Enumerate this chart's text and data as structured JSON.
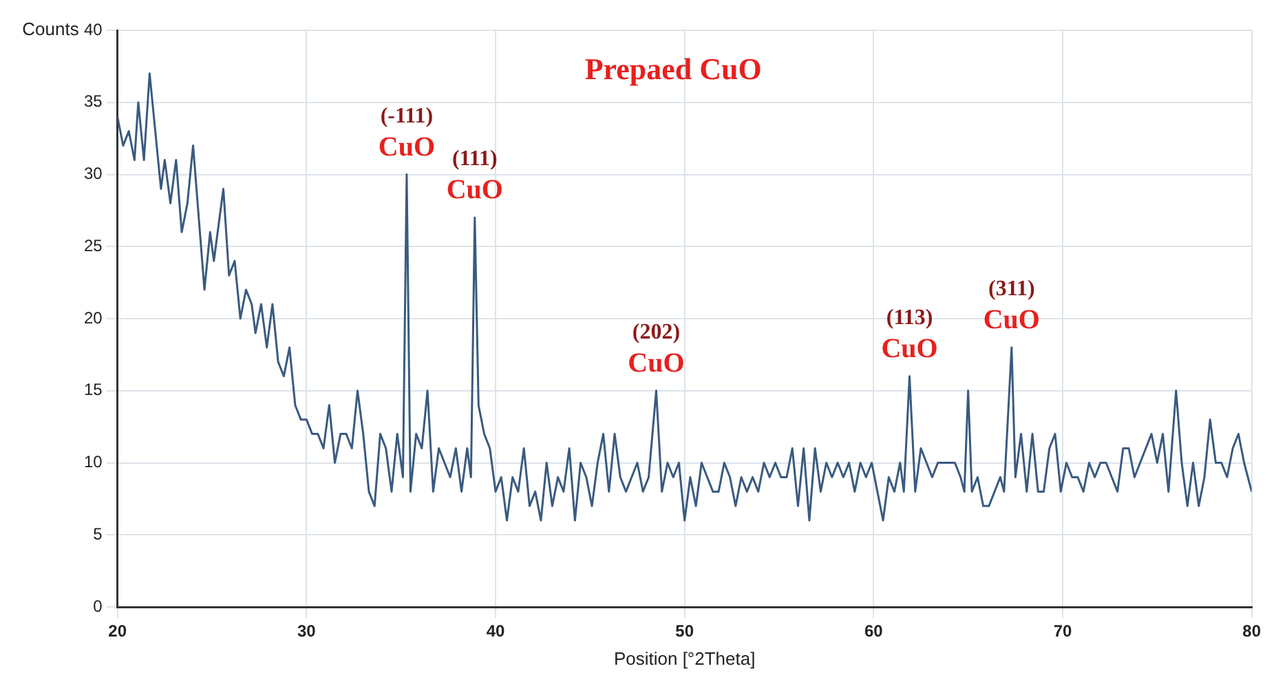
{
  "chart_data": {
    "type": "line",
    "title": "Prepaed CuO",
    "xlabel": "Position [°2Theta]",
    "ylabel": "Counts",
    "xlim": [
      20,
      80
    ],
    "xticks": [
      20,
      30,
      40,
      50,
      60,
      70,
      80
    ],
    "ylim": [
      0,
      40
    ],
    "yticks": [
      0,
      5,
      10,
      15,
      20,
      25,
      30,
      35,
      40
    ],
    "grid": true,
    "legend": false,
    "marker": "none",
    "line_style": "solid",
    "annotations": [
      {
        "text": "(-111)",
        "x": 35.3,
        "y": 30
      },
      {
        "text": "CuO",
        "x": 35.3,
        "y": 30
      },
      {
        "text": "(111)",
        "x": 38.9,
        "y": 27
      },
      {
        "text": "CuO",
        "x": 38.9,
        "y": 27
      },
      {
        "text": "(202)",
        "x": 48.5,
        "y": 15
      },
      {
        "text": "CuO",
        "x": 48.5,
        "y": 15
      },
      {
        "text": "(113)",
        "x": 61.9,
        "y": 16
      },
      {
        "text": "CuO",
        "x": 61.9,
        "y": 16
      },
      {
        "text": "(311)",
        "x": 67.3,
        "y": 18
      },
      {
        "text": "CuO",
        "x": 67.3,
        "y": 18
      }
    ],
    "series": [
      {
        "color": "#3a5a80",
        "x": [
          20.0,
          20.3,
          20.6,
          20.9,
          21.1,
          21.4,
          21.7,
          22.0,
          22.3,
          22.5,
          22.8,
          23.1,
          23.4,
          23.7,
          24.0,
          24.3,
          24.6,
          24.9,
          25.1,
          25.3,
          25.6,
          25.9,
          26.2,
          26.5,
          26.8,
          27.1,
          27.3,
          27.6,
          27.9,
          28.2,
          28.5,
          28.8,
          29.1,
          29.4,
          29.7,
          30.0,
          30.3,
          30.6,
          30.9,
          31.2,
          31.5,
          31.8,
          32.1,
          32.4,
          32.7,
          33.0,
          33.3,
          33.6,
          33.9,
          34.2,
          34.5,
          34.8,
          35.1,
          35.3,
          35.5,
          35.8,
          36.1,
          36.4,
          36.7,
          37.0,
          37.3,
          37.6,
          37.9,
          38.2,
          38.5,
          38.7,
          38.9,
          39.1,
          39.4,
          39.7,
          40.0,
          40.3,
          40.6,
          40.9,
          41.2,
          41.5,
          41.8,
          42.1,
          42.4,
          42.7,
          43.0,
          43.3,
          43.6,
          43.9,
          44.2,
          44.5,
          44.8,
          45.1,
          45.4,
          45.7,
          46.0,
          46.3,
          46.6,
          46.9,
          47.2,
          47.5,
          47.8,
          48.1,
          48.5,
          48.8,
          49.1,
          49.4,
          49.7,
          50.0,
          50.3,
          50.6,
          50.9,
          51.2,
          51.5,
          51.8,
          52.1,
          52.4,
          52.7,
          53.0,
          53.3,
          53.6,
          53.9,
          54.2,
          54.5,
          54.8,
          55.1,
          55.4,
          55.7,
          56.0,
          56.3,
          56.6,
          56.9,
          57.2,
          57.5,
          57.8,
          58.1,
          58.4,
          58.7,
          59.0,
          59.3,
          59.6,
          59.9,
          60.2,
          60.5,
          60.8,
          61.1,
          61.4,
          61.6,
          61.9,
          62.2,
          62.5,
          62.8,
          63.1,
          63.4,
          63.7,
          64.0,
          64.3,
          64.6,
          64.8,
          65.0,
          65.2,
          65.5,
          65.8,
          66.1,
          66.4,
          66.7,
          66.9,
          67.3,
          67.5,
          67.8,
          68.1,
          68.4,
          68.7,
          69.0,
          69.3,
          69.6,
          69.9,
          70.2,
          70.5,
          70.8,
          71.1,
          71.4,
          71.7,
          72.0,
          72.3,
          72.6,
          72.9,
          73.2,
          73.5,
          73.8,
          74.1,
          74.4,
          74.7,
          75.0,
          75.3,
          75.6,
          76.0,
          76.3,
          76.6,
          76.9,
          77.2,
          77.5,
          77.8,
          78.1,
          78.4,
          78.7,
          79.0,
          79.3,
          79.6,
          80.0
        ],
        "values": [
          34,
          32,
          33,
          31,
          35,
          31,
          37,
          33,
          29,
          31,
          28,
          31,
          26,
          28,
          32,
          27,
          22,
          26,
          24,
          26,
          29,
          23,
          24,
          20,
          22,
          21,
          19,
          21,
          18,
          21,
          17,
          16,
          18,
          14,
          13,
          13,
          12,
          12,
          11,
          14,
          10,
          12,
          12,
          11,
          15,
          12,
          8,
          7,
          12,
          11,
          8,
          12,
          9,
          30,
          8,
          12,
          11,
          15,
          8,
          11,
          10,
          9,
          11,
          8,
          11,
          9,
          27,
          14,
          12,
          11,
          8,
          9,
          6,
          9,
          8,
          11,
          7,
          8,
          6,
          10,
          7,
          9,
          8,
          11,
          6,
          10,
          9,
          7,
          10,
          12,
          8,
          12,
          9,
          8,
          9,
          10,
          8,
          9,
          15,
          8,
          10,
          9,
          10,
          6,
          9,
          7,
          10,
          9,
          8,
          8,
          10,
          9,
          7,
          9,
          8,
          9,
          8,
          10,
          9,
          10,
          9,
          9,
          11,
          7,
          11,
          6,
          11,
          8,
          10,
          9,
          10,
          9,
          10,
          8,
          10,
          9,
          10,
          8,
          6,
          9,
          8,
          10,
          8,
          16,
          8,
          11,
          10,
          9,
          10,
          10,
          10,
          10,
          9,
          8,
          15,
          8,
          9,
          7,
          7,
          8,
          9,
          8,
          18,
          9,
          12,
          8,
          12,
          8,
          8,
          11,
          12,
          8,
          10,
          9,
          9,
          8,
          10,
          9,
          10,
          10,
          9,
          8,
          11,
          11,
          9,
          10,
          11,
          12,
          10,
          12,
          8,
          15,
          10,
          7,
          10,
          7,
          9,
          13,
          10,
          10,
          9,
          11,
          12,
          10,
          8
        ]
      }
    ]
  }
}
